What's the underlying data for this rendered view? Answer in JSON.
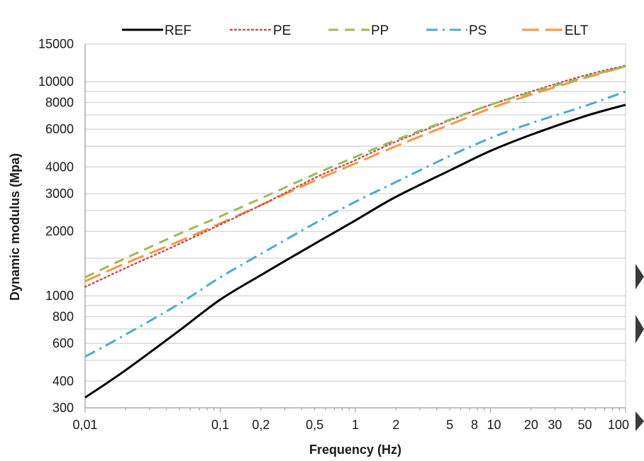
{
  "chart_data": {
    "type": "line",
    "xlabel": "Frequency (Hz)",
    "ylabel": "Dynamic modulus (Mpa)",
    "x_scale": "log",
    "y_scale": "log",
    "xlim": [
      0.01,
      100
    ],
    "ylim": [
      300,
      15000
    ],
    "x_ticks": [
      {
        "v": 0.01,
        "label": "0,01"
      },
      {
        "v": 0.1,
        "label": "0,1"
      },
      {
        "v": 0.2,
        "label": "0,2"
      },
      {
        "v": 0.5,
        "label": "0,5"
      },
      {
        "v": 1,
        "label": "1"
      },
      {
        "v": 2,
        "label": "2"
      },
      {
        "v": 5,
        "label": "5"
      },
      {
        "v": 8,
        "label": "8"
      },
      {
        "v": 10,
        "label": "10"
      },
      {
        "v": 20,
        "label": "20"
      },
      {
        "v": 30,
        "label": "30"
      },
      {
        "v": 50,
        "label": "50"
      },
      {
        "v": 100,
        "label": "100"
      }
    ],
    "y_ticks": [
      {
        "v": 300,
        "label": "300"
      },
      {
        "v": 400,
        "label": "400"
      },
      {
        "v": 600,
        "label": "600"
      },
      {
        "v": 800,
        "label": "800"
      },
      {
        "v": 1000,
        "label": "1000"
      },
      {
        "v": 2000,
        "label": "2000"
      },
      {
        "v": 3000,
        "label": "3000"
      },
      {
        "v": 4000,
        "label": "4000"
      },
      {
        "v": 6000,
        "label": "6000"
      },
      {
        "v": 8000,
        "label": "8000"
      },
      {
        "v": 10000,
        "label": "10000"
      },
      {
        "v": 15000,
        "label": "15000"
      }
    ],
    "y_gridlines": [
      300,
      400,
      500,
      600,
      700,
      800,
      900,
      1000,
      1500,
      2000,
      2500,
      3000,
      4000,
      5000,
      6000,
      7000,
      8000,
      9000,
      10000,
      15000
    ],
    "grid": true,
    "legend_position": "top",
    "series": [
      {
        "name": "REF",
        "color": "#000000",
        "dash": "solid",
        "x": [
          0.01,
          0.02,
          0.05,
          0.1,
          0.2,
          0.5,
          1,
          2,
          5,
          10,
          20,
          50,
          100
        ],
        "y": [
          335,
          450,
          690,
          960,
          1250,
          1750,
          2250,
          2900,
          3850,
          4750,
          5650,
          6900,
          7800
        ]
      },
      {
        "name": "PE",
        "color": "#c0504d",
        "dash": "dot",
        "x": [
          0.01,
          0.02,
          0.05,
          0.1,
          0.2,
          0.5,
          1,
          2,
          5,
          10,
          20,
          50,
          100
        ],
        "y": [
          1100,
          1350,
          1750,
          2150,
          2650,
          3550,
          4300,
          5250,
          6600,
          7800,
          9000,
          10700,
          11900
        ]
      },
      {
        "name": "PP",
        "color": "#9bbb59",
        "dash": "dash",
        "x": [
          0.01,
          0.02,
          0.05,
          0.1,
          0.2,
          0.5,
          1,
          2,
          5,
          10,
          20,
          50,
          100
        ],
        "y": [
          1220,
          1500,
          1950,
          2350,
          2850,
          3700,
          4450,
          5350,
          6650,
          7800,
          8900,
          10500,
          11800
        ]
      },
      {
        "name": "PS",
        "color": "#4bacc6",
        "dash": "dashdot",
        "x": [
          0.01,
          0.02,
          0.05,
          0.1,
          0.2,
          0.5,
          1,
          2,
          5,
          10,
          20,
          50,
          100
        ],
        "y": [
          520,
          660,
          920,
          1220,
          1570,
          2180,
          2750,
          3400,
          4500,
          5450,
          6400,
          7700,
          9000
        ]
      },
      {
        "name": "ELT",
        "color": "#f79646",
        "dash": "longdash",
        "x": [
          0.01,
          0.02,
          0.05,
          0.1,
          0.2,
          0.5,
          1,
          2,
          5,
          10,
          20,
          50,
          100
        ],
        "y": [
          1170,
          1420,
          1800,
          2180,
          2650,
          3450,
          4150,
          5000,
          6300,
          7500,
          8700,
          10400,
          11800
        ]
      }
    ]
  }
}
